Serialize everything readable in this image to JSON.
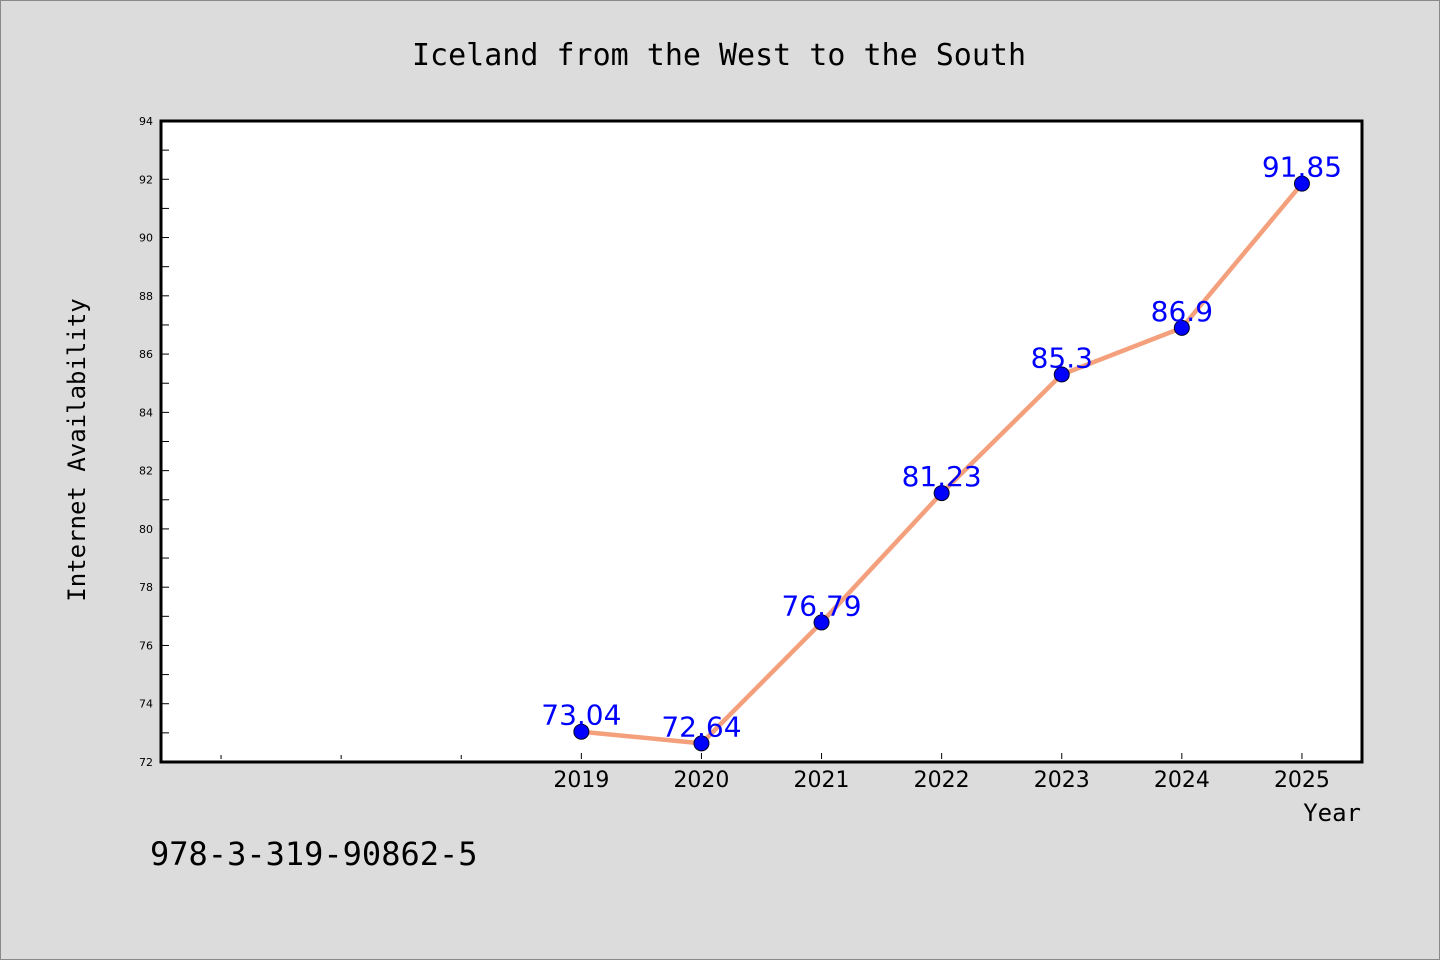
{
  "chart_data": {
    "type": "line",
    "title": "Iceland from the West to the South",
    "xlabel": "Year",
    "ylabel": "Internet Availability",
    "x": [
      2019,
      2020,
      2021,
      2022,
      2023,
      2024,
      2025
    ],
    "values": [
      73.04,
      72.64,
      76.79,
      81.23,
      85.3,
      86.9,
      91.85
    ],
    "data_labels": [
      "73.04",
      "72.64",
      "76.79",
      "81.23",
      "85.3",
      "86.9",
      "91.85"
    ],
    "xlim": [
      2015.5,
      2025.5
    ],
    "ylim": [
      72,
      94
    ],
    "y_ticks": [
      72,
      74,
      76,
      78,
      80,
      82,
      84,
      86,
      88,
      90,
      92,
      94
    ],
    "x_ticks": [
      2019,
      2020,
      2021,
      2022,
      2023,
      2024,
      2025
    ],
    "x_minor_ticks": [
      2016,
      2017,
      2018
    ],
    "grid": false,
    "legend": "none",
    "colors": {
      "line": "#f4a07c",
      "marker": "#0000ff",
      "data_label": "#0000ff",
      "background": "#dcdcdc",
      "plot_background": "#ffffff"
    }
  },
  "footer_text": "978-3-319-90862-5"
}
